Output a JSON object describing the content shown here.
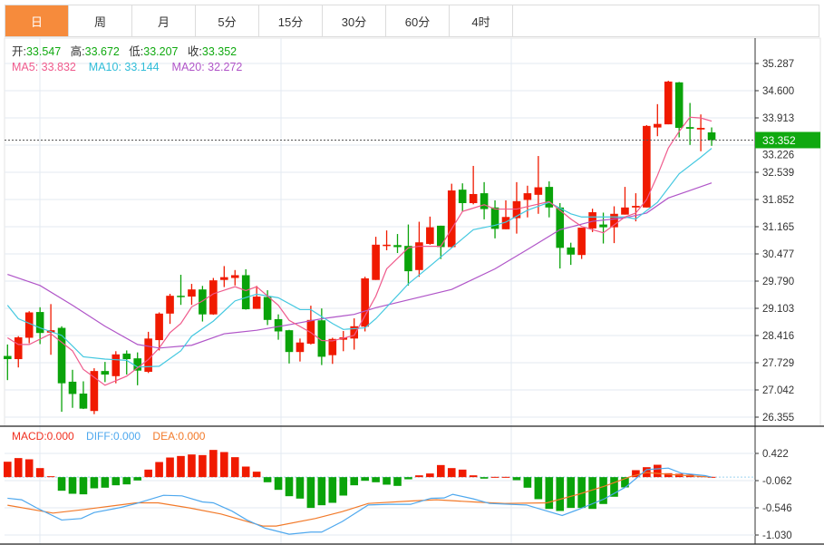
{
  "tabs": [
    {
      "label": "日",
      "active": true
    },
    {
      "label": "周"
    },
    {
      "label": "月"
    },
    {
      "label": "5分"
    },
    {
      "label": "15分"
    },
    {
      "label": "30分"
    },
    {
      "label": "60分"
    },
    {
      "label": "4时"
    }
  ],
  "ohlc_legend": {
    "open_label": "开:",
    "open": "33.547",
    "high_label": "高:",
    "high": "33.672",
    "low_label": "低:",
    "low": "33.207",
    "close_label": "收:",
    "close": "33.352"
  },
  "ma_legend": {
    "ma5": "MA5: 33.832",
    "ma10": "MA10: 33.144",
    "ma20": "MA20: 32.272"
  },
  "macd_legend": {
    "macd": "MACD:0.000",
    "diff": "DIFF:0.000",
    "dea": "DEA:0.000"
  },
  "colors": {
    "up": "#f01a00",
    "down": "#0aa30a",
    "ma5": "#ef5a8c",
    "ma10": "#44c8e0",
    "ma20": "#b055c8",
    "diff": "#4ea8ee",
    "dea": "#f27a2a",
    "active_tab": "#f68b3c",
    "last_price_bg": "#10a910"
  },
  "chart_data": [
    {
      "type": "candlestick",
      "price_axis_ticks": [
        "35.287",
        "34.600",
        "33.913",
        "33.226",
        "32.539",
        "31.852",
        "31.165",
        "30.477",
        "29.790",
        "29.103",
        "28.416",
        "27.729",
        "27.042",
        "26.355"
      ],
      "ylim": [
        26.355,
        35.287
      ],
      "last_price": "33.352",
      "candles": [
        [
          27.9,
          28.19,
          27.29,
          27.82
        ],
        [
          27.82,
          28.4,
          27.61,
          28.37
        ],
        [
          28.36,
          29.03,
          28.22,
          29.0
        ],
        [
          29.01,
          29.13,
          28.2,
          28.48
        ],
        [
          28.49,
          29.21,
          27.93,
          28.55
        ],
        [
          28.61,
          28.65,
          26.49,
          27.21
        ],
        [
          27.25,
          27.55,
          26.59,
          26.94
        ],
        [
          26.95,
          27.26,
          26.56,
          26.57
        ],
        [
          26.51,
          27.59,
          26.43,
          27.52
        ],
        [
          27.52,
          27.75,
          27.24,
          27.43
        ],
        [
          27.39,
          28.02,
          27.21,
          27.94
        ],
        [
          27.96,
          28.04,
          27.43,
          27.82
        ],
        [
          27.84,
          27.99,
          27.16,
          27.53
        ],
        [
          27.5,
          28.51,
          27.47,
          28.34
        ],
        [
          28.3,
          29.0,
          28.04,
          28.97
        ],
        [
          28.97,
          29.47,
          28.71,
          29.42
        ],
        [
          29.42,
          29.95,
          29.19,
          29.4
        ],
        [
          29.4,
          29.72,
          29.19,
          29.58
        ],
        [
          29.58,
          29.67,
          28.77,
          28.95
        ],
        [
          28.95,
          29.87,
          28.94,
          29.81
        ],
        [
          29.82,
          30.17,
          29.64,
          29.89
        ],
        [
          29.87,
          30.07,
          29.68,
          29.94
        ],
        [
          29.94,
          30.09,
          29.07,
          29.08
        ],
        [
          29.09,
          29.67,
          29.09,
          29.4
        ],
        [
          29.39,
          29.56,
          28.68,
          28.81
        ],
        [
          28.83,
          28.95,
          28.31,
          28.52
        ],
        [
          28.55,
          28.56,
          27.71,
          28.0
        ],
        [
          28.0,
          28.34,
          27.76,
          28.24
        ],
        [
          28.21,
          29.17,
          28.19,
          28.81
        ],
        [
          28.8,
          29.1,
          27.67,
          27.88
        ],
        [
          27.92,
          28.36,
          27.7,
          28.33
        ],
        [
          28.31,
          28.53,
          28.02,
          28.37
        ],
        [
          28.34,
          28.85,
          28.06,
          28.65
        ],
        [
          28.64,
          29.9,
          28.52,
          29.86
        ],
        [
          29.82,
          30.91,
          29.82,
          30.71
        ],
        [
          30.68,
          31.07,
          30.57,
          30.71
        ],
        [
          30.7,
          30.98,
          30.5,
          30.65
        ],
        [
          30.68,
          31.22,
          29.68,
          30.04
        ],
        [
          30.07,
          31.29,
          29.9,
          30.77
        ],
        [
          30.73,
          31.42,
          30.71,
          31.15
        ],
        [
          31.19,
          31.19,
          30.35,
          30.65
        ],
        [
          30.65,
          32.25,
          30.63,
          32.08
        ],
        [
          32.1,
          32.26,
          31.55,
          31.76
        ],
        [
          31.76,
          32.7,
          31.73,
          31.99
        ],
        [
          32.01,
          32.29,
          31.35,
          31.61
        ],
        [
          31.65,
          31.83,
          30.87,
          31.11
        ],
        [
          31.1,
          31.83,
          31.1,
          31.41
        ],
        [
          31.38,
          32.29,
          30.99,
          31.81
        ],
        [
          31.84,
          32.2,
          31.4,
          32.01
        ],
        [
          31.97,
          32.95,
          31.49,
          32.16
        ],
        [
          32.17,
          32.31,
          31.4,
          31.65
        ],
        [
          31.65,
          31.76,
          30.11,
          30.63
        ],
        [
          30.64,
          30.76,
          30.2,
          30.46
        ],
        [
          30.45,
          31.14,
          30.35,
          31.14
        ],
        [
          31.12,
          31.62,
          31.03,
          31.53
        ],
        [
          31.22,
          31.52,
          30.74,
          31.15
        ],
        [
          31.15,
          31.68,
          30.75,
          31.49
        ],
        [
          31.47,
          32.17,
          31.47,
          31.65
        ],
        [
          31.65,
          32.01,
          31.3,
          31.69
        ],
        [
          31.65,
          33.73,
          31.65,
          33.71
        ],
        [
          33.67,
          34.26,
          33.45,
          33.76
        ],
        [
          33.75,
          34.85,
          33.75,
          34.83
        ],
        [
          34.81,
          34.82,
          33.42,
          33.66
        ],
        [
          33.68,
          34.29,
          33.23,
          33.64
        ],
        [
          33.62,
          34.0,
          33.07,
          33.66
        ],
        [
          33.547,
          33.672,
          33.207,
          33.352
        ]
      ],
      "ma5": [
        [
          0,
          28.36
        ],
        [
          1,
          28.19
        ],
        [
          2,
          28.19
        ],
        [
          4,
          28.46
        ],
        [
          6,
          28.03
        ],
        [
          7,
          27.56
        ],
        [
          9,
          27.16
        ],
        [
          11,
          27.39
        ],
        [
          13,
          27.81
        ],
        [
          14,
          28.1
        ],
        [
          15,
          28.49
        ],
        [
          16,
          28.72
        ],
        [
          17,
          29.14
        ],
        [
          18,
          29.29
        ],
        [
          19,
          29.47
        ],
        [
          21,
          29.65
        ],
        [
          22,
          29.55
        ],
        [
          23,
          29.65
        ],
        [
          25,
          29.18
        ],
        [
          26,
          28.8
        ],
        [
          28,
          28.49
        ],
        [
          29,
          28.29
        ],
        [
          30,
          28.28
        ],
        [
          32,
          28.42
        ],
        [
          34,
          29.41
        ],
        [
          35,
          30.1
        ],
        [
          37,
          30.63
        ],
        [
          38,
          30.67
        ],
        [
          40,
          30.67
        ],
        [
          42,
          31.55
        ],
        [
          44,
          31.72
        ],
        [
          45,
          31.61
        ],
        [
          47,
          31.61
        ],
        [
          50,
          31.8
        ],
        [
          52,
          31.36
        ],
        [
          53,
          31.17
        ],
        [
          55,
          31.01
        ],
        [
          57,
          31.41
        ],
        [
          58,
          31.51
        ],
        [
          59,
          31.85
        ],
        [
          60,
          32.46
        ],
        [
          61,
          33.15
        ],
        [
          62,
          33.57
        ],
        [
          63,
          33.93
        ],
        [
          64,
          33.91
        ],
        [
          65,
          33.832
        ]
      ],
      "ma10": [
        [
          0,
          29.18
        ],
        [
          1,
          28.84
        ],
        [
          3,
          28.61
        ],
        [
          5,
          28.42
        ],
        [
          7,
          27.88
        ],
        [
          9,
          27.82
        ],
        [
          11,
          27.79
        ],
        [
          12,
          27.62
        ],
        [
          14,
          27.64
        ],
        [
          16,
          28.03
        ],
        [
          17,
          28.4
        ],
        [
          19,
          28.78
        ],
        [
          21,
          29.29
        ],
        [
          23,
          29.46
        ],
        [
          25,
          29.37
        ],
        [
          27,
          29.07
        ],
        [
          28,
          29.07
        ],
        [
          30,
          28.72
        ],
        [
          31,
          28.57
        ],
        [
          33,
          28.61
        ],
        [
          34,
          28.84
        ],
        [
          37,
          29.72
        ],
        [
          39,
          30.17
        ],
        [
          41,
          30.63
        ],
        [
          43,
          31.09
        ],
        [
          45,
          31.2
        ],
        [
          46,
          31.28
        ],
        [
          48,
          31.58
        ],
        [
          50,
          31.78
        ],
        [
          52,
          31.49
        ],
        [
          53,
          31.41
        ],
        [
          55,
          31.41
        ],
        [
          57,
          31.41
        ],
        [
          58,
          31.36
        ],
        [
          60,
          31.78
        ],
        [
          62,
          32.5
        ],
        [
          64,
          32.92
        ],
        [
          65,
          33.144
        ]
      ],
      "ma20": [
        [
          0,
          29.96
        ],
        [
          3,
          29.68
        ],
        [
          6,
          29.18
        ],
        [
          9,
          28.65
        ],
        [
          12,
          28.19
        ],
        [
          14,
          28.1
        ],
        [
          17,
          28.17
        ],
        [
          20,
          28.46
        ],
        [
          23,
          28.55
        ],
        [
          26,
          28.69
        ],
        [
          29,
          28.84
        ],
        [
          32,
          28.95
        ],
        [
          34,
          29.12
        ],
        [
          41,
          29.58
        ],
        [
          45,
          30.1
        ],
        [
          48,
          30.59
        ],
        [
          51,
          31.09
        ],
        [
          54,
          31.3
        ],
        [
          57,
          31.39
        ],
        [
          59,
          31.51
        ],
        [
          61,
          31.89
        ],
        [
          63,
          32.08
        ],
        [
          65,
          32.272
        ]
      ]
    },
    {
      "type": "macd",
      "axis_ticks": [
        "0.422",
        "-0.062",
        "-0.546",
        "-1.030"
      ],
      "ylim": [
        -1.03,
        0.422
      ],
      "histogram": [
        0.274,
        0.339,
        0.317,
        0.161,
        0.016,
        -0.242,
        -0.296,
        -0.306,
        -0.199,
        -0.188,
        -0.145,
        -0.129,
        -0.059,
        0.134,
        0.269,
        0.349,
        0.376,
        0.403,
        0.392,
        0.484,
        0.446,
        0.355,
        0.188,
        0.097,
        -0.091,
        -0.226,
        -0.339,
        -0.382,
        -0.548,
        -0.5,
        -0.457,
        -0.328,
        -0.145,
        -0.065,
        -0.091,
        -0.134,
        -0.156,
        -0.038,
        0.032,
        0.065,
        0.215,
        0.161,
        0.134,
        0.032,
        -0.027,
        0.005,
        0.005,
        -0.054,
        -0.188,
        -0.392,
        -0.565,
        -0.602,
        -0.548,
        -0.548,
        -0.565,
        -0.478,
        -0.349,
        -0.183,
        0.124,
        0.177,
        0.22,
        0.07,
        0.059,
        0.043,
        0.016,
        0.005
      ],
      "diff": [
        [
          0,
          -0.376
        ],
        [
          1.3,
          -0.403
        ],
        [
          2.7,
          -0.548
        ],
        [
          5,
          -0.763
        ],
        [
          6.8,
          -0.737
        ],
        [
          8,
          -0.629
        ],
        [
          10.5,
          -0.538
        ],
        [
          11.9,
          -0.468
        ],
        [
          14.4,
          -0.323
        ],
        [
          16.1,
          -0.333
        ],
        [
          18,
          -0.441
        ],
        [
          19,
          -0.457
        ],
        [
          20.7,
          -0.602
        ],
        [
          22.1,
          -0.763
        ],
        [
          23.8,
          -0.909
        ],
        [
          26,
          -1.016
        ],
        [
          28,
          -0.978
        ],
        [
          29,
          -0.978
        ],
        [
          30.9,
          -0.79
        ],
        [
          33.3,
          -0.495
        ],
        [
          35.2,
          -0.484
        ],
        [
          37.2,
          -0.484
        ],
        [
          39.1,
          -0.376
        ],
        [
          40.3,
          -0.371
        ],
        [
          41.1,
          -0.306
        ],
        [
          43,
          -0.387
        ],
        [
          44.5,
          -0.468
        ],
        [
          47.9,
          -0.495
        ],
        [
          49.3,
          -0.575
        ],
        [
          51.2,
          -0.683
        ],
        [
          52.7,
          -0.575
        ],
        [
          55.1,
          -0.387
        ],
        [
          57.1,
          -0.172
        ],
        [
          59,
          0.134
        ],
        [
          61,
          0.161
        ],
        [
          62.2,
          0.07
        ],
        [
          64.4,
          0.027
        ],
        [
          65,
          0
        ]
      ],
      "dea": [
        [
          0,
          -0.5
        ],
        [
          4.2,
          -0.64
        ],
        [
          7.1,
          -0.575
        ],
        [
          11.9,
          -0.457
        ],
        [
          13.9,
          -0.457
        ],
        [
          16.8,
          -0.548
        ],
        [
          19.7,
          -0.656
        ],
        [
          23.6,
          -0.871
        ],
        [
          24.8,
          -0.871
        ],
        [
          28.4,
          -0.737
        ],
        [
          30.9,
          -0.613
        ],
        [
          33.3,
          -0.468
        ],
        [
          37.2,
          -0.425
        ],
        [
          39.6,
          -0.403
        ],
        [
          43,
          -0.441
        ],
        [
          45.9,
          -0.468
        ],
        [
          49.8,
          -0.457
        ],
        [
          52.7,
          -0.306
        ],
        [
          55.1,
          -0.161
        ],
        [
          57.6,
          0.016
        ],
        [
          59,
          0.081
        ],
        [
          61.5,
          0.043
        ],
        [
          65,
          0
        ]
      ]
    }
  ]
}
